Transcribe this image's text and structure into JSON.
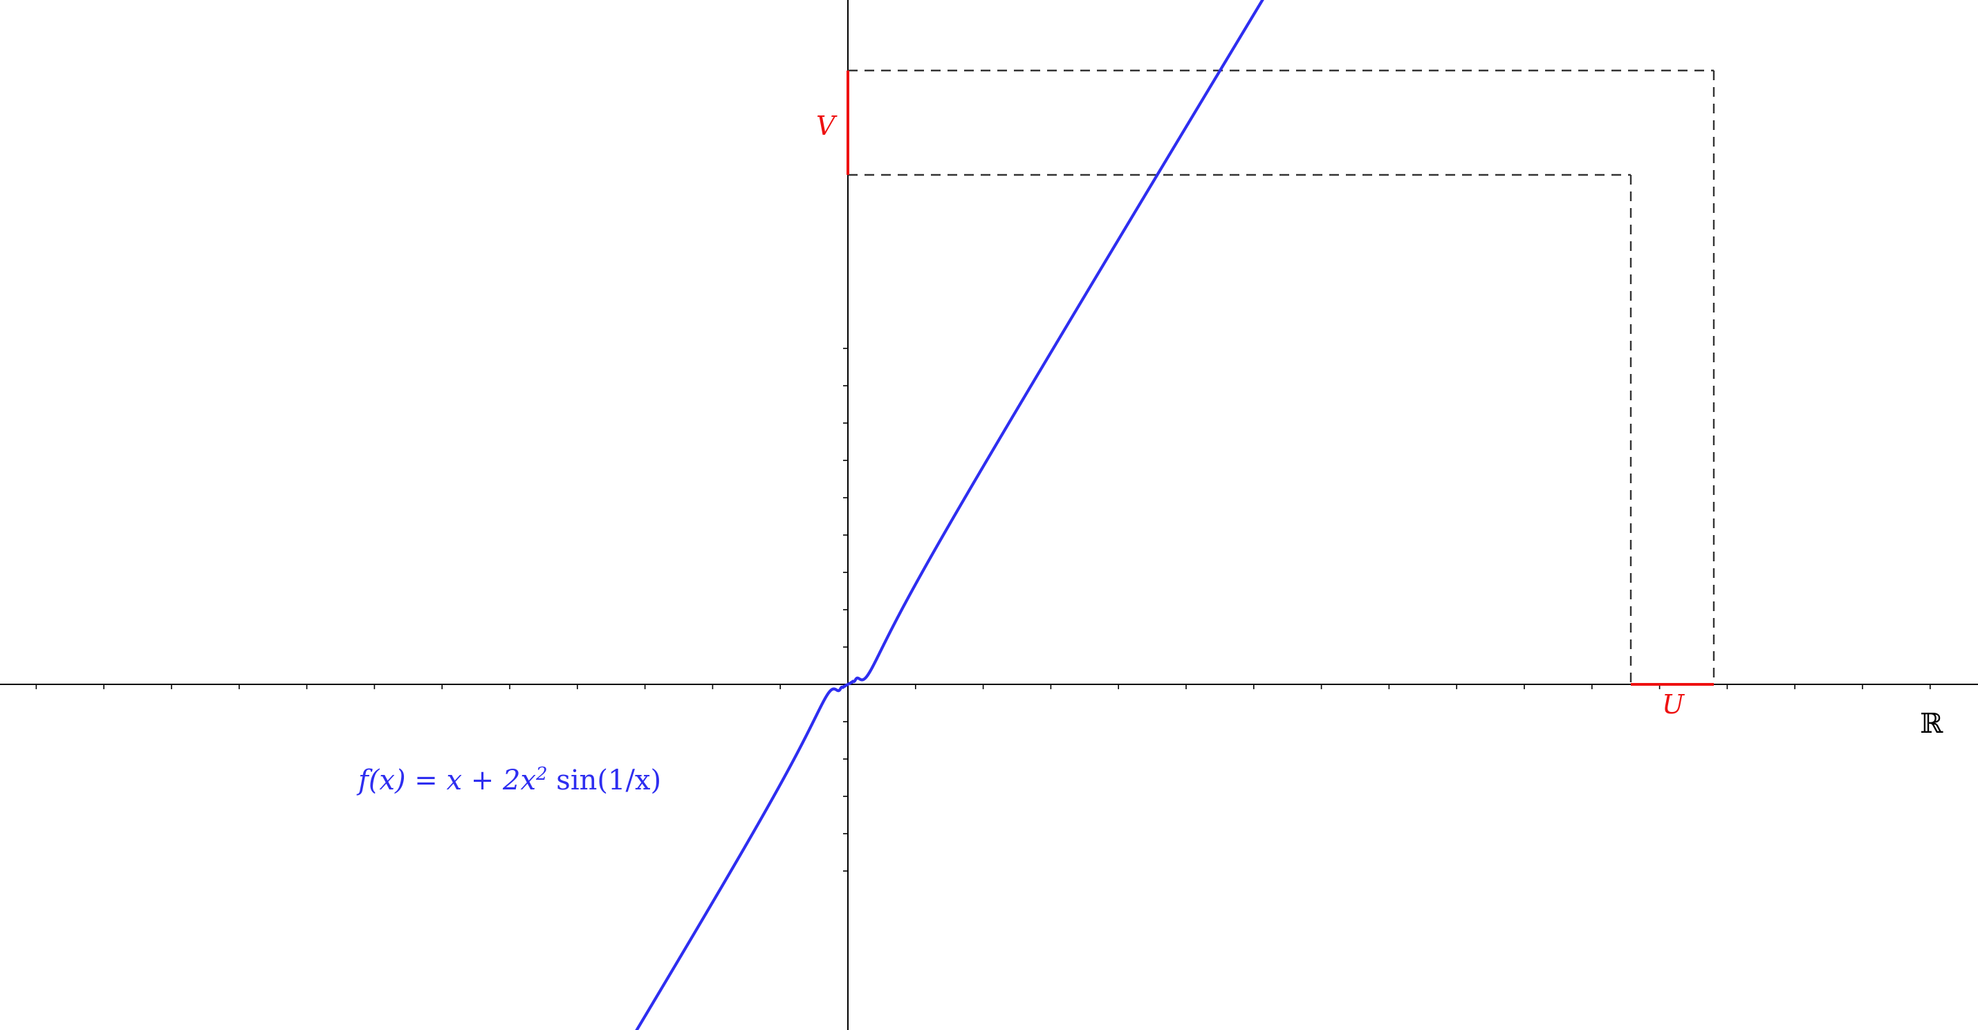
{
  "figure": {
    "function_label": {
      "f": "f",
      "open_paren_x": "(x) = x + 2x",
      "exponent": "2",
      "rest": " sin(1/x)"
    },
    "interval_U_label": "U",
    "interval_V_label": "V",
    "axis_label_R": "ℝ",
    "colors": {
      "curve": "#2e2ef0",
      "interval": "#ee1111",
      "axes": "#000000",
      "dashed": "#333333"
    },
    "icons": {
      "curve": "function-graph",
      "interval": "red-segment"
    }
  },
  "chart_data": {
    "type": "line",
    "title": "",
    "xlabel": "ℝ",
    "ylabel": "",
    "function": "x + 2x^2 sin(1/x)",
    "xlim": [
      -12.6,
      16.7
    ],
    "ylim": [
      -5,
      9.05
    ],
    "grid": false,
    "legend": "none",
    "x_tick_spacing": 1,
    "y_tick_spacing": 1,
    "U_interval": [
      11.6,
      12.85
    ],
    "V_interval": [
      7.52,
      9.04
    ]
  }
}
